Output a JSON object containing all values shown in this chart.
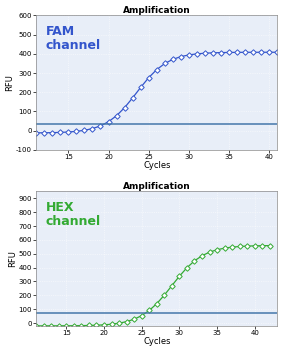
{
  "title": "Amplification",
  "fam_label": "FAM\nchannel",
  "hex_label": "HEX\nchannel",
  "fam_color": "#3355cc",
  "hex_color": "#33aa33",
  "threshold_color": "#4477aa",
  "xlabel": "Cycles",
  "ylabel": "RFU",
  "fam_ylim": [
    -100,
    600
  ],
  "fam_yticks": [
    -100,
    0,
    100,
    200,
    300,
    400,
    500,
    600
  ],
  "hex_ylim": [
    -20,
    950
  ],
  "hex_yticks": [
    0,
    100,
    200,
    300,
    400,
    500,
    600,
    700,
    800,
    900
  ],
  "fam_xlim": [
    11,
    41
  ],
  "hex_xlim": [
    11,
    43
  ],
  "fam_xticks": [
    15,
    20,
    25,
    30,
    35,
    40
  ],
  "hex_xticks": [
    15,
    20,
    25,
    30,
    35,
    40
  ],
  "fam_threshold": 35,
  "hex_threshold": 75,
  "background": "#e8eef8",
  "fig_bg": "#f0f0f0"
}
